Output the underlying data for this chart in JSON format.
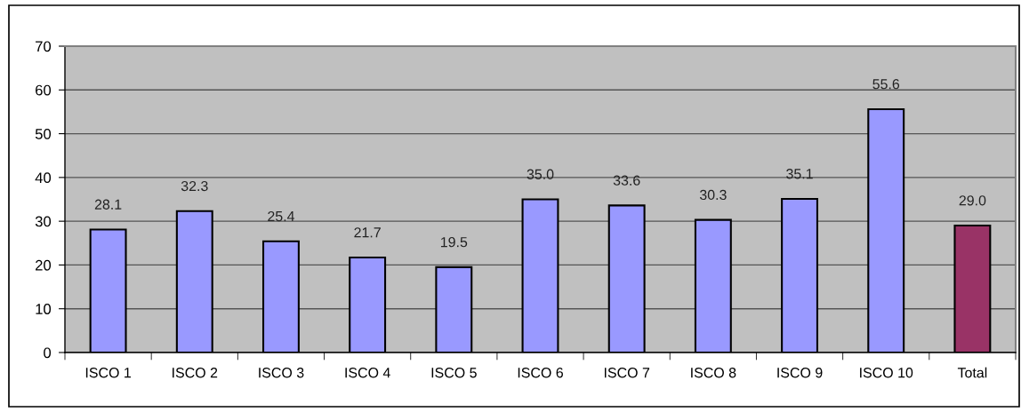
{
  "chart_data": {
    "type": "bar",
    "categories": [
      "ISCO 1",
      "ISCO 2",
      "ISCO 3",
      "ISCO 4",
      "ISCO 5",
      "ISCO 6",
      "ISCO 7",
      "ISCO 8",
      "ISCO 9",
      "ISCO 10",
      "Total"
    ],
    "values": [
      28.1,
      32.3,
      25.4,
      21.7,
      19.5,
      35.0,
      33.6,
      30.3,
      35.1,
      55.6,
      29.0
    ],
    "colors": [
      "#9999ff",
      "#9999ff",
      "#9999ff",
      "#9999ff",
      "#9999ff",
      "#9999ff",
      "#9999ff",
      "#9999ff",
      "#9999ff",
      "#9999ff",
      "#993366"
    ],
    "value_labels": [
      "28.1",
      "32.3",
      "25.4",
      "21.7",
      "19.5",
      "35.0",
      "33.6",
      "30.3",
      "35.1",
      "55.6",
      "29.0"
    ],
    "ylim": [
      0,
      70
    ],
    "yticks": [
      0,
      10,
      20,
      30,
      40,
      50,
      60,
      70
    ],
    "grid": "y"
  }
}
